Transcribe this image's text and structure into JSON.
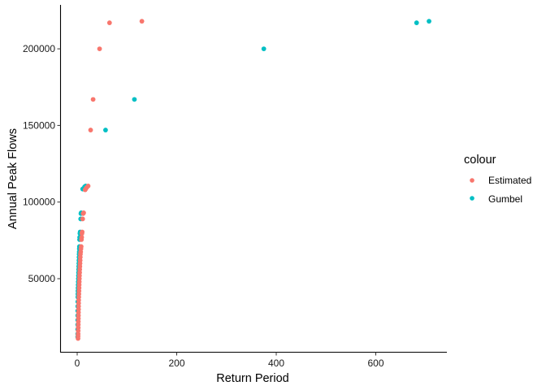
{
  "chart_data": {
    "type": "scatter",
    "title": "",
    "xlabel": "Return Period",
    "ylabel": "Annual Peak Flows",
    "xlim": [
      -30,
      745
    ],
    "ylim": [
      6000,
      227000
    ],
    "x_ticks": [
      0,
      200,
      400,
      600
    ],
    "x_tick_labels": [
      "0",
      "200",
      "400",
      "600"
    ],
    "y_ticks": [
      50000,
      100000,
      150000,
      200000
    ],
    "y_tick_labels": [
      "50000",
      "100000",
      "150000",
      "200000"
    ],
    "grid": false,
    "legend": {
      "title": "colour",
      "position": "right",
      "entries": [
        {
          "label": "Estimated",
          "color": "#F8766D"
        },
        {
          "label": "Gumbel",
          "color": "#00BFC4"
        }
      ]
    },
    "series": [
      {
        "name": "Gumbel",
        "color": "#00BFC4",
        "points": [
          [
            707,
            218000
          ],
          [
            682,
            217000
          ],
          [
            375,
            200000
          ],
          [
            115,
            167000
          ],
          [
            57,
            147000
          ],
          [
            17,
            110500
          ],
          [
            15,
            110000
          ],
          [
            13,
            109000
          ],
          [
            11,
            108500
          ],
          [
            8,
            93000
          ],
          [
            7.5,
            92500
          ],
          [
            7,
            89000
          ],
          [
            6,
            80500
          ],
          [
            5.5,
            79500
          ],
          [
            5,
            77000
          ],
          [
            4.8,
            75500
          ],
          [
            4.5,
            71000
          ],
          [
            4.3,
            69500
          ],
          [
            4.1,
            67500
          ],
          [
            3.9,
            66000
          ],
          [
            3.7,
            64000
          ],
          [
            3.5,
            62000
          ],
          [
            3.3,
            60000
          ],
          [
            3.1,
            58000
          ],
          [
            2.9,
            56000
          ],
          [
            2.7,
            54000
          ],
          [
            2.5,
            52000
          ],
          [
            2.3,
            50000
          ],
          [
            2.1,
            48000
          ],
          [
            1.9,
            46000
          ],
          [
            1.7,
            44000
          ],
          [
            1.5,
            42000
          ],
          [
            1.4,
            40000
          ],
          [
            1.3,
            38000
          ],
          [
            1.2,
            35000
          ],
          [
            1.15,
            32000
          ],
          [
            1.1,
            29000
          ],
          [
            1.08,
            26000
          ],
          [
            1.06,
            23000
          ],
          [
            1.04,
            20000
          ],
          [
            1.02,
            17000
          ],
          [
            1.01,
            14000
          ],
          [
            1.005,
            12000
          ]
        ]
      },
      {
        "name": "Estimated",
        "color": "#F8766D",
        "points": [
          [
            130,
            218000
          ],
          [
            65,
            217000
          ],
          [
            45,
            200000
          ],
          [
            32,
            167000
          ],
          [
            27,
            147000
          ],
          [
            22,
            110500
          ],
          [
            19,
            109500
          ],
          [
            17,
            108500
          ],
          [
            16,
            108000
          ],
          [
            13,
            93000
          ],
          [
            12,
            92500
          ],
          [
            11,
            89000
          ],
          [
            10,
            80500
          ],
          [
            9.5,
            79500
          ],
          [
            9,
            77000
          ],
          [
            8.5,
            75500
          ],
          [
            8,
            71000
          ],
          [
            7.5,
            69500
          ],
          [
            7,
            67500
          ],
          [
            6.5,
            66000
          ],
          [
            6.2,
            64000
          ],
          [
            6,
            62000
          ],
          [
            5.7,
            60000
          ],
          [
            5.4,
            58000
          ],
          [
            5.1,
            56000
          ],
          [
            4.9,
            54000
          ],
          [
            4.6,
            52000
          ],
          [
            4.4,
            50000
          ],
          [
            4.2,
            48000
          ],
          [
            4,
            46000
          ],
          [
            3.8,
            44000
          ],
          [
            3.6,
            42000
          ],
          [
            3.4,
            40000
          ],
          [
            3.2,
            38000
          ],
          [
            3,
            36000
          ],
          [
            2.9,
            34000
          ],
          [
            2.8,
            32000
          ],
          [
            2.7,
            30000
          ],
          [
            2.6,
            28000
          ],
          [
            2.5,
            26000
          ],
          [
            2.4,
            24000
          ],
          [
            2.3,
            22000
          ],
          [
            2.2,
            20000
          ],
          [
            2.1,
            18000
          ],
          [
            2.0,
            16000
          ],
          [
            1.9,
            14000
          ],
          [
            1.8,
            12500
          ],
          [
            1.7,
            11000
          ]
        ]
      }
    ]
  }
}
